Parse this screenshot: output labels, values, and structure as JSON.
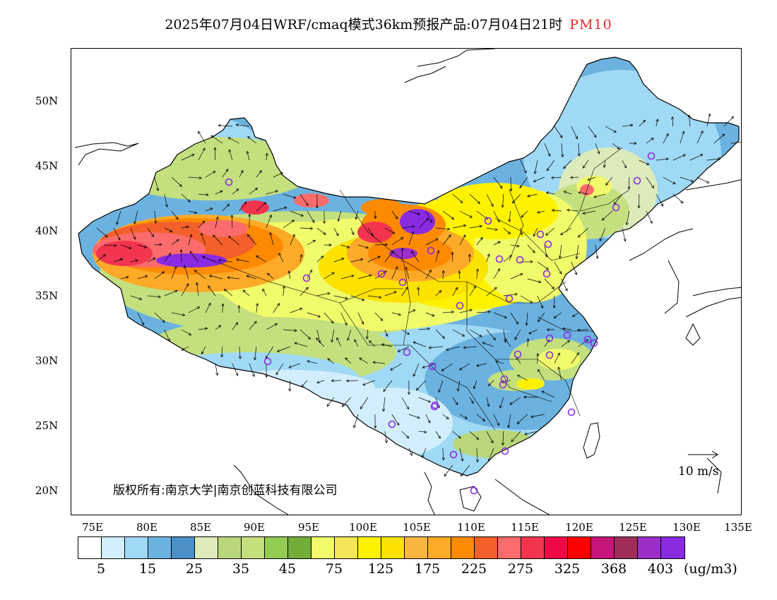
{
  "title": {
    "main": "2025年07月04日WRF/cmaq模式36km预报产品:07月04日21时",
    "pollutant": "PM10",
    "pollutant_color": "#e8272a"
  },
  "axes": {
    "lat_labels": [
      "50N",
      "45N",
      "40N",
      "35N",
      "30N",
      "25N",
      "20N"
    ],
    "lon_labels": [
      "75E",
      "80E",
      "85E",
      "90E",
      "95E",
      "100E",
      "105E",
      "110E",
      "115E",
      "120E",
      "125E",
      "130E",
      "135E"
    ]
  },
  "colorbar": {
    "colors": [
      "#ffffff",
      "#d2eefc",
      "#9fd9f5",
      "#6cb2e0",
      "#4a8fc6",
      "#dcebb9",
      "#b9d77a",
      "#c4e07e",
      "#93cc52",
      "#72ad3a",
      "#f0fa6a",
      "#f3e557",
      "#fef200",
      "#fce200",
      "#f8b540",
      "#fcaa28",
      "#fd8a00",
      "#f4602b",
      "#fd6c6c",
      "#f3344f",
      "#ef0846",
      "#fd0000",
      "#c7157c",
      "#a02d5a",
      "#9b2fc8",
      "#8a2be2"
    ],
    "labels": [
      "5",
      "15",
      "25",
      "35",
      "45",
      "75",
      "125",
      "175",
      "225",
      "275",
      "325",
      "368",
      "403"
    ],
    "unit": "(ug/m3)"
  },
  "reference_vector": {
    "label": "10  m/s"
  },
  "copyright": "版权所有:南京大学|南京创蓝科技有限公司",
  "colors": {
    "station_marker": "#8a2be2",
    "coastline": "#000000"
  }
}
